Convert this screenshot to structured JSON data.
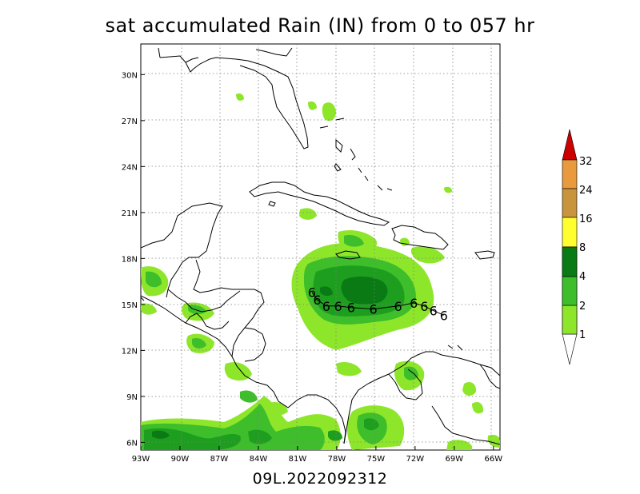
{
  "title": "sat accumulated Rain (IN) from 0 to 057 hr",
  "footer": "09L.2022092312",
  "map": {
    "lon_labels": [
      "93W",
      "90W",
      "87W",
      "84W",
      "81W",
      "78W",
      "75W",
      "72W",
      "69W",
      "66W"
    ],
    "lat_labels": [
      "30N",
      "27N",
      "24N",
      "21N",
      "18N",
      "15N",
      "12N",
      "9N",
      "6N"
    ],
    "lon_range": [
      -93,
      -65.5
    ],
    "lat_range": [
      5.5,
      32
    ],
    "grid": "dotted"
  },
  "colorbar": {
    "labels": [
      "1",
      "2",
      "4",
      "8",
      "16",
      "24",
      "32"
    ],
    "colors": [
      "#8ee62a",
      "#3dbe2a",
      "#1e9e1e",
      "#0a7a14",
      "#ffff30",
      "#c8953c",
      "#e09a3c",
      "#cc0000"
    ]
  },
  "storm_track": {
    "symbol": "6",
    "points": [
      {
        "lon": -79.9,
        "lat": 15.8
      },
      {
        "lon": -79.5,
        "lat": 15.3
      },
      {
        "lon": -78.8,
        "lat": 14.9
      },
      {
        "lon": -77.9,
        "lat": 14.9
      },
      {
        "lon": -76.9,
        "lat": 14.8
      },
      {
        "lon": -75.2,
        "lat": 14.7
      },
      {
        "lon": -73.3,
        "lat": 14.9
      },
      {
        "lon": -72.1,
        "lat": 15.1
      },
      {
        "lon": -71.3,
        "lat": 14.9
      },
      {
        "lon": -70.6,
        "lat": 14.6
      },
      {
        "lon": -69.8,
        "lat": 14.3
      }
    ]
  }
}
